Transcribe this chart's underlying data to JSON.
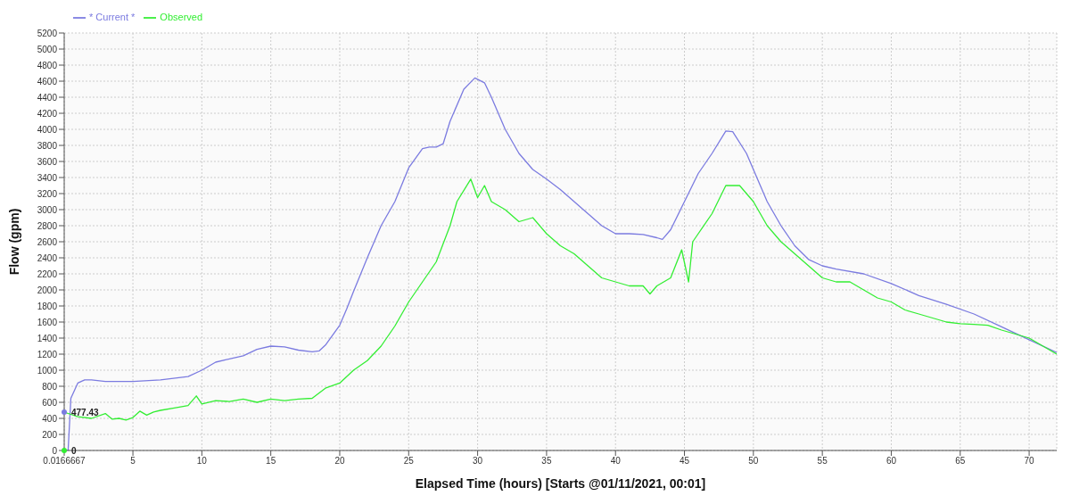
{
  "chart_data": {
    "type": "line",
    "xlabel": "Elapsed Time (hours) [Starts @01/11/2021, 00:01]",
    "ylabel": "Flow (gpm)",
    "xlim": [
      0.0166667,
      72
    ],
    "xticks": [
      {
        "value": 0.0166667,
        "label": "0.0166667"
      },
      5,
      10,
      15,
      20,
      25,
      30,
      35,
      40,
      45,
      50,
      55,
      60,
      65,
      70
    ],
    "ylim": [
      0,
      5200
    ],
    "yticks": [
      0,
      200,
      400,
      600,
      800,
      1000,
      1200,
      1400,
      1600,
      1800,
      2000,
      2200,
      2400,
      2600,
      2800,
      3000,
      3200,
      3400,
      3600,
      3800,
      4000,
      4200,
      4400,
      4600,
      4800,
      5000,
      5200
    ],
    "grid": true,
    "legend": "top left",
    "marker": "none",
    "line_style": "solid",
    "annotations": [
      {
        "text": "477.43",
        "x": 0.0166667,
        "y": 477.43
      },
      {
        "text": "0",
        "x": 0.0166667,
        "y": 0
      }
    ],
    "series": [
      {
        "name": "* Current *",
        "color": "#7b7be0",
        "x": [
          0.0166667,
          0.3,
          0.5,
          1,
          1.5,
          2,
          3,
          5,
          7,
          9,
          10,
          11,
          12,
          13,
          14,
          15,
          16,
          17,
          18,
          18.5,
          19,
          20,
          20.5,
          21,
          22,
          23,
          24,
          25,
          26,
          26.5,
          27,
          27.5,
          28,
          29,
          29.8,
          30.5,
          31,
          32,
          33,
          34,
          35,
          36,
          37,
          38,
          39,
          40,
          41,
          42,
          43,
          43.4,
          44,
          45,
          46,
          47,
          48,
          48.5,
          49.5,
          50,
          51,
          52,
          53,
          54,
          55,
          56,
          58,
          60,
          62,
          64,
          66,
          68,
          70,
          72
        ],
        "values": [
          0,
          0,
          650,
          840,
          880,
          880,
          860,
          860,
          880,
          920,
          1000,
          1100,
          1140,
          1180,
          1260,
          1300,
          1290,
          1250,
          1230,
          1240,
          1320,
          1560,
          1760,
          1980,
          2400,
          2800,
          3100,
          3520,
          3760,
          3780,
          3780,
          3820,
          4100,
          4500,
          4640,
          4580,
          4400,
          4000,
          3700,
          3500,
          3380,
          3250,
          3100,
          2950,
          2800,
          2700,
          2700,
          2690,
          2650,
          2630,
          2750,
          3100,
          3450,
          3700,
          3980,
          3970,
          3700,
          3500,
          3100,
          2800,
          2550,
          2380,
          2300,
          2260,
          2200,
          2080,
          1930,
          1820,
          1700,
          1540,
          1380,
          1220
        ]
      },
      {
        "name": "Observed",
        "color": "#33ee33",
        "x": [
          0.0166667,
          0.5,
          1,
          2,
          3,
          3.5,
          4,
          4.5,
          5,
          5.5,
          6,
          6.5,
          7,
          8,
          9,
          9.6,
          10,
          11,
          12,
          13,
          14,
          15,
          16,
          17,
          18,
          19,
          20,
          21,
          22,
          23,
          24,
          25,
          26,
          27,
          28,
          28.5,
          29.5,
          30,
          30.5,
          31,
          32,
          33,
          34,
          35,
          36,
          37,
          38,
          39,
          40,
          41,
          42,
          42.5,
          43,
          44,
          44.8,
          45.3,
          45.6,
          46,
          47,
          48,
          49,
          50,
          51,
          52,
          53,
          54,
          55,
          56,
          57,
          58,
          59,
          60,
          61,
          62,
          63,
          64,
          65,
          66,
          67,
          68,
          69,
          70,
          71,
          72
        ],
        "values": [
          477.43,
          450,
          420,
          400,
          460,
          390,
          400,
          380,
          410,
          490,
          440,
          480,
          500,
          530,
          560,
          680,
          580,
          620,
          610,
          640,
          600,
          640,
          620,
          640,
          650,
          780,
          840,
          1000,
          1120,
          1300,
          1550,
          1850,
          2100,
          2350,
          2800,
          3100,
          3380,
          3150,
          3300,
          3100,
          3000,
          2850,
          2900,
          2700,
          2550,
          2450,
          2300,
          2150,
          2100,
          2050,
          2050,
          1950,
          2050,
          2150,
          2500,
          2100,
          2600,
          2700,
          2950,
          3300,
          3300,
          3100,
          2800,
          2600,
          2450,
          2300,
          2150,
          2100,
          2100,
          2000,
          1900,
          1850,
          1750,
          1700,
          1650,
          1600,
          1580,
          1570,
          1560,
          1500,
          1450,
          1400,
          1300,
          1200
        ]
      }
    ]
  }
}
